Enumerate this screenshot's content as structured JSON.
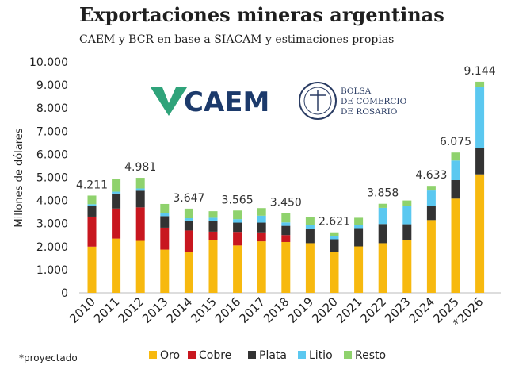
{
  "title": "Exportaciones mineras argentinas",
  "subtitle": "CAEM y BCR en base a SIACAM y estimaciones propias",
  "footnote": "*proyectado",
  "logos": {
    "caem": "CAEM",
    "bcr": [
      "BOLSA",
      "DE COMERCIO",
      "DE ROSARIO"
    ]
  },
  "colors": {
    "Oro": "#f7b90f",
    "Cobre": "#c8171f",
    "Plata": "#333333",
    "Litio": "#5bc8f0",
    "Resto": "#8fd26d"
  },
  "chart_data": {
    "type": "bar",
    "stacked": true,
    "ylabel": "Millones de dólares",
    "xlabel": "",
    "ylim": [
      0,
      10000
    ],
    "yticks": [
      "0",
      "1.000",
      "2.000",
      "3.000",
      "4.000",
      "5.000",
      "6.000",
      "7.000",
      "8.000",
      "9.000",
      "10.000"
    ],
    "categories": [
      "2010",
      "2011",
      "2012",
      "2013",
      "2014",
      "2015",
      "2016",
      "2017",
      "2018",
      "2019",
      "2020",
      "2021",
      "2022",
      "2023",
      "2024",
      "2025",
      "*2026"
    ],
    "series": [
      {
        "name": "Oro",
        "values": [
          2000,
          2350,
          2250,
          1870,
          1780,
          2280,
          2050,
          2230,
          2200,
          2150,
          1760,
          2010,
          2150,
          2300,
          3150,
          4080,
          5130
        ]
      },
      {
        "name": "Cobre",
        "values": [
          1300,
          1300,
          1450,
          950,
          920,
          370,
          590,
          390,
          300,
          0,
          0,
          0,
          0,
          0,
          0,
          0,
          0
        ]
      },
      {
        "name": "Plata",
        "values": [
          460,
          650,
          720,
          500,
          430,
          450,
          400,
          420,
          400,
          600,
          560,
          790,
          830,
          670,
          630,
          800,
          1150
        ]
      },
      {
        "name": "Litio",
        "values": [
          80,
          80,
          100,
          120,
          100,
          150,
          150,
          300,
          150,
          200,
          120,
          150,
          700,
          800,
          650,
          850,
          2650
        ]
      },
      {
        "name": "Resto",
        "values": [
          371,
          550,
          461,
          410,
          417,
          285,
          375,
          330,
          400,
          330,
          181,
          300,
          178,
          230,
          203,
          345,
          214
        ]
      }
    ],
    "totals": [
      4211,
      4930,
      4981,
      3850,
      3647,
      3535,
      3565,
      3670,
      3450,
      3280,
      2621,
      3250,
      3858,
      4000,
      4633,
      6075,
      9144
    ],
    "data_labels": {
      "0": "4.211",
      "2": "4.981",
      "4": "3.647",
      "6": "3.565",
      "8": "3.450",
      "10": "2.621",
      "12": "3.858",
      "14": "4.633",
      "15": "6.075",
      "16": "9.144"
    },
    "legend_position": "bottom",
    "grid": false
  }
}
